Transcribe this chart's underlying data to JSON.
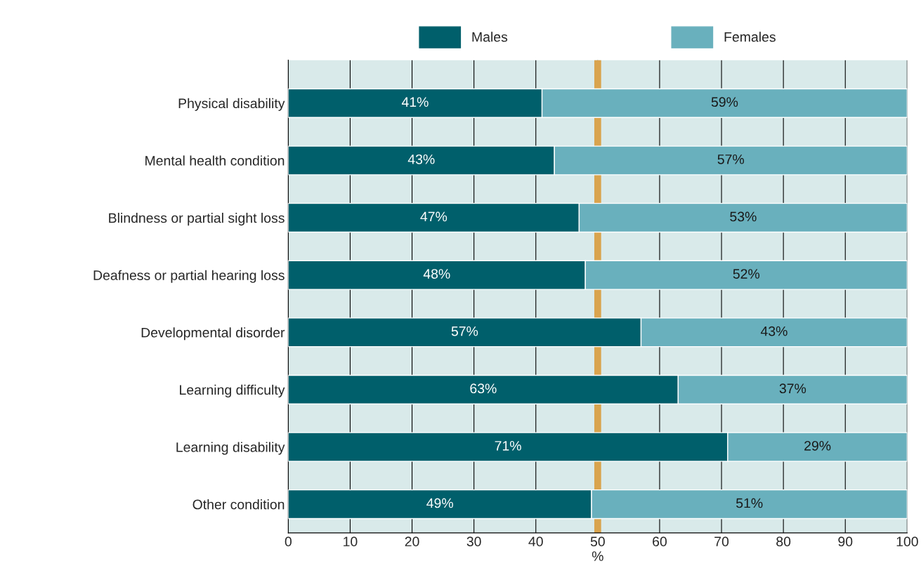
{
  "chart_data": {
    "type": "bar",
    "orientation": "horizontal",
    "stacked": true,
    "categories": [
      "Physical disability",
      "Mental health condition",
      "Blindness or partial sight loss",
      "Deafness or partial hearing loss",
      "Developmental disorder",
      "Learning difficulty",
      "Learning disability",
      "Other condition"
    ],
    "series": [
      {
        "name": "Males",
        "color": "#005f6b",
        "values": [
          41,
          43,
          47,
          48,
          57,
          63,
          71,
          49
        ],
        "value_labels": [
          "41%",
          "43%",
          "47%",
          "48%",
          "57%",
          "63%",
          "71%",
          "49%"
        ]
      },
      {
        "name": "Females",
        "color": "#69b0bd",
        "values": [
          59,
          57,
          53,
          52,
          43,
          37,
          29,
          51
        ],
        "value_labels": [
          "59%",
          "57%",
          "53%",
          "52%",
          "43%",
          "37%",
          "29%",
          "51%"
        ]
      }
    ],
    "xlabel": "%",
    "xlim": [
      0,
      100
    ],
    "xticks": [
      0,
      10,
      20,
      30,
      40,
      50,
      60,
      70,
      80,
      90,
      100
    ],
    "ref_lines": [
      {
        "axis": "x",
        "value": 50,
        "color": "#d9a44e"
      }
    ],
    "grid": "x",
    "legend": "top"
  }
}
